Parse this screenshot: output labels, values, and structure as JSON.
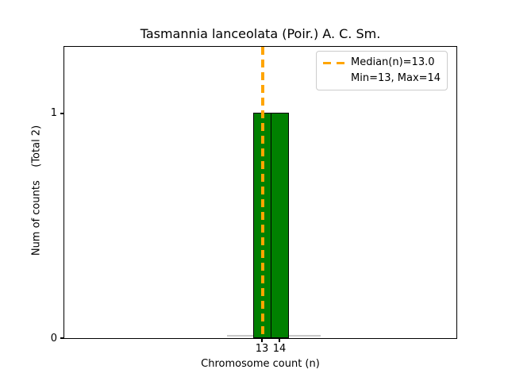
{
  "figure": {
    "title": "Tasmannia lanceolata (Poir.) A. C. Sm.",
    "x_axis": {
      "label": "Chromosome count (n)",
      "ticks": [
        "13",
        "14"
      ]
    },
    "y_axis": {
      "label": "Num of counts    (Total 2)",
      "ticks": [
        "0",
        "1"
      ]
    },
    "legend": {
      "median_label": "Median(n)=13.0",
      "minmax_label": "Min=13, Max=14"
    },
    "colors": {
      "bar": "#008000",
      "bar_edge": "#000000",
      "median_line": "#FFA500",
      "zero_baseline": "#c8c8c8",
      "legend_border": "#cccccc"
    }
  },
  "chart_data": {
    "type": "bar",
    "title": "Tasmannia lanceolata (Poir.) A. C. Sm.",
    "xlabel": "Chromosome count (n)",
    "ylabel": "Num of counts    (Total 2)",
    "categories": [
      13,
      14
    ],
    "values": [
      1,
      1
    ],
    "total_counts": 2,
    "median_n": 13.0,
    "min_n": 13,
    "max_n": 14,
    "x_ticks": [
      13,
      14
    ],
    "y_ticks": [
      0,
      1
    ],
    "ylim": [
      0,
      1.3
    ],
    "bar_color": "#008000",
    "bar_edge_color": "#000000",
    "median_line": {
      "x": 13.0,
      "style": "dashed",
      "color": "#FFA500"
    },
    "zero_count_baseline_x_range_approx": [
      11,
      16.2
    ],
    "legend_position": "upper right",
    "legend_entries": [
      "Median(n)=13.0",
      "Min=13, Max=14"
    ],
    "grid": false
  }
}
